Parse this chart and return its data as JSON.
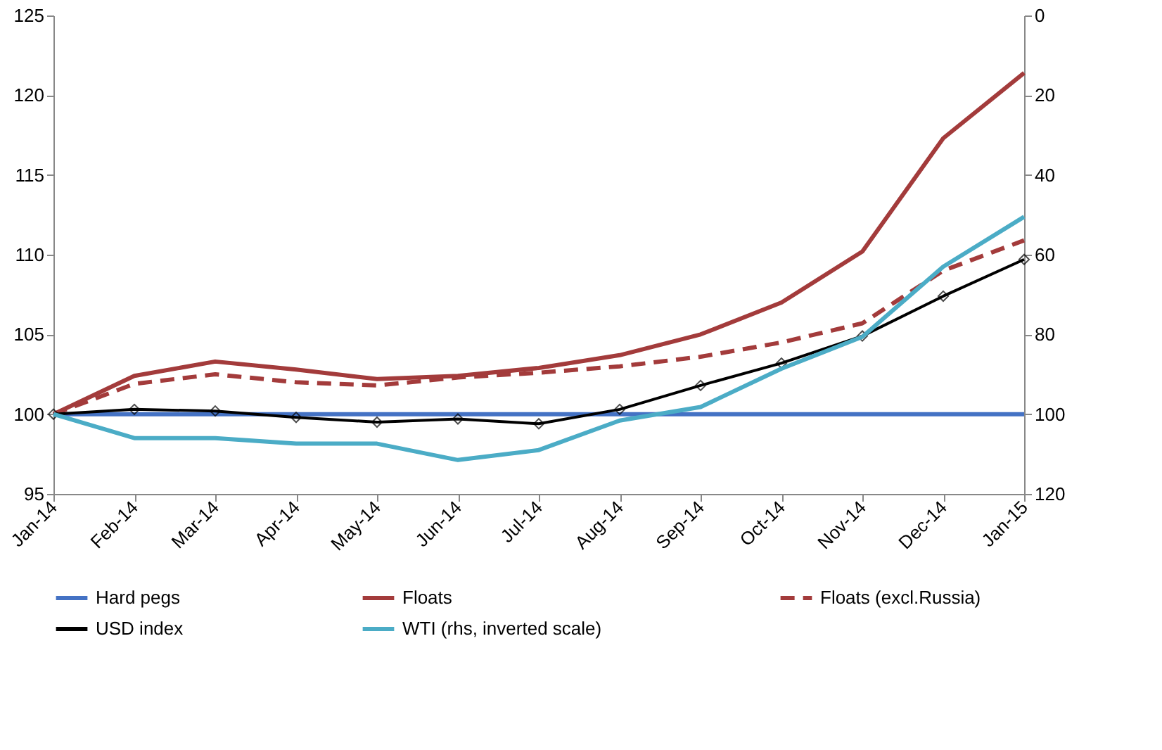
{
  "chart_data": {
    "type": "line",
    "categories": [
      "Jan-14",
      "Feb-14",
      "Mar-14",
      "Apr-14",
      "May-14",
      "Jun-14",
      "Jul-14",
      "Aug-14",
      "Sep-14",
      "Oct-14",
      "Nov-14",
      "Dec-14",
      "Jan-15"
    ],
    "series": [
      {
        "name": "Hard pegs",
        "color": "#4472c4",
        "line_style": "solid",
        "values": [
          100,
          100,
          100,
          100,
          100,
          100,
          100,
          100,
          100,
          100,
          100,
          100,
          100
        ]
      },
      {
        "name": "Floats",
        "color": "#a33b3b",
        "line_style": "solid",
        "values": [
          100,
          102.4,
          103.3,
          102.8,
          102.2,
          102.4,
          102.9,
          103.7,
          105.0,
          107.0,
          110.2,
          117.3,
          121.4
        ]
      },
      {
        "name": "Floats (excl.Russia)",
        "color": "#a33b3b",
        "line_style": "dashed",
        "values": [
          100,
          101.9,
          102.5,
          102.0,
          101.8,
          102.3,
          102.6,
          103.0,
          103.6,
          104.5,
          105.7,
          109.0,
          110.9
        ]
      },
      {
        "name": "USD index",
        "color": "#000000",
        "line_style": "solid",
        "marker": "diamond",
        "values": [
          100,
          100.3,
          100.2,
          99.8,
          99.5,
          99.7,
          99.4,
          100.3,
          101.8,
          103.2,
          104.9,
          107.4,
          109.7
        ]
      },
      {
        "name": "WTI (rhs, inverted scale)",
        "color": "#4bacc6",
        "line_style": "solid",
        "axis": "y2",
        "values": [
          100,
          106,
          106,
          107.4,
          107.4,
          111.5,
          109,
          101.6,
          98.2,
          88.6,
          80.6,
          63,
          50.5
        ]
      }
    ],
    "ylim": [
      95,
      125
    ],
    "yticks": [
      95,
      100,
      105,
      110,
      115,
      120,
      125
    ],
    "y2lim": [
      120,
      0
    ],
    "y2ticks": [
      0,
      20,
      40,
      60,
      80,
      100,
      120
    ],
    "grid": false,
    "legend": "bottom"
  }
}
